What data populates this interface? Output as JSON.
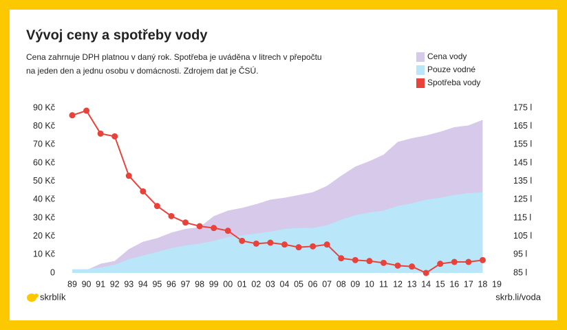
{
  "chart_data": {
    "type": "area-line",
    "title": "Vývoj ceny a spotřeby vody",
    "subtitle": [
      "Cena zahrnuje DPH platnou v daný rok. Spotřeba je uváděna v litrech v přepočtu",
      "na jeden den a jednu osobu v domácnosti. Zdrojem dat je ČSÚ."
    ],
    "categories": [
      "89",
      "90",
      "91",
      "92",
      "93",
      "94",
      "95",
      "96",
      "97",
      "98",
      "99",
      "00",
      "01",
      "02",
      "03",
      "04",
      "05",
      "06",
      "07",
      "08",
      "09",
      "10",
      "11",
      "12",
      "13",
      "14",
      "15",
      "16",
      "17",
      "18",
      "19"
    ],
    "series": [
      {
        "name": "Cena vody",
        "color": "#d6c9e9",
        "kind": "area",
        "values": [
          1.5,
          1.5,
          5,
          6.5,
          13,
          17,
          19,
          22,
          24,
          25,
          31,
          34,
          35.5,
          37.5,
          40,
          41,
          42.5,
          44,
          47.5,
          53,
          58,
          61,
          64.5,
          71.5,
          73.5,
          75,
          77,
          79.5,
          80.5,
          83.5,
          null
        ]
      },
      {
        "name": "Pouze vodné",
        "color": "#b9e6f8",
        "kind": "area",
        "values": [
          2,
          2,
          3,
          4.5,
          7.5,
          9.5,
          11.5,
          13.5,
          15,
          16,
          17.5,
          19.5,
          20.5,
          21.5,
          22.5,
          24,
          24.5,
          24.5,
          26,
          29,
          31.5,
          33,
          34,
          36.5,
          38,
          40,
          41,
          42.5,
          43.5,
          44,
          null
        ]
      },
      {
        "name": "Spotřeba vody",
        "color": "#e8423a",
        "kind": "line",
        "axis": "y2",
        "values": [
          171,
          173.5,
          161,
          159.5,
          138,
          129.5,
          121.5,
          116,
          112.5,
          110.5,
          109.5,
          108,
          102.5,
          101,
          101.5,
          100.5,
          99,
          99.5,
          100.5,
          93,
          92,
          91.5,
          90.5,
          89,
          88.5,
          85,
          90,
          91,
          91,
          92,
          null
        ]
      }
    ],
    "ylim": [
      0,
      90
    ],
    "yticks": [
      0,
      {
        "value": 10,
        "label": "10 Kč"
      },
      {
        "value": 20,
        "label": "20 Kč"
      },
      {
        "value": 30,
        "label": "30 Kč"
      },
      {
        "value": 40,
        "label": "40 Kč"
      },
      {
        "value": 50,
        "label": "50 Kč"
      },
      {
        "value": 60,
        "label": "60 Kč"
      },
      {
        "value": 70,
        "label": "70 Kč"
      },
      {
        "value": 80,
        "label": "80 Kč"
      },
      {
        "value": 90,
        "label": "90 Kč"
      }
    ],
    "y2lim": [
      85,
      175
    ],
    "y2ticks": [
      {
        "value": 85,
        "label": "85 l"
      },
      {
        "value": 95,
        "label": "95 l"
      },
      {
        "value": 105,
        "label": "105 l"
      },
      {
        "value": 115,
        "label": "115 l"
      },
      {
        "value": 125,
        "label": "125 l"
      },
      {
        "value": 135,
        "label": "135 l"
      },
      {
        "value": 145,
        "label": "145 l"
      },
      {
        "value": 155,
        "label": "155 l"
      },
      {
        "value": 165,
        "label": "165 l"
      },
      {
        "value": 175,
        "label": "175 l"
      }
    ],
    "legend": "top-right",
    "footer": {
      "brand": "skrblík",
      "url": "skrb.li/voda"
    }
  }
}
